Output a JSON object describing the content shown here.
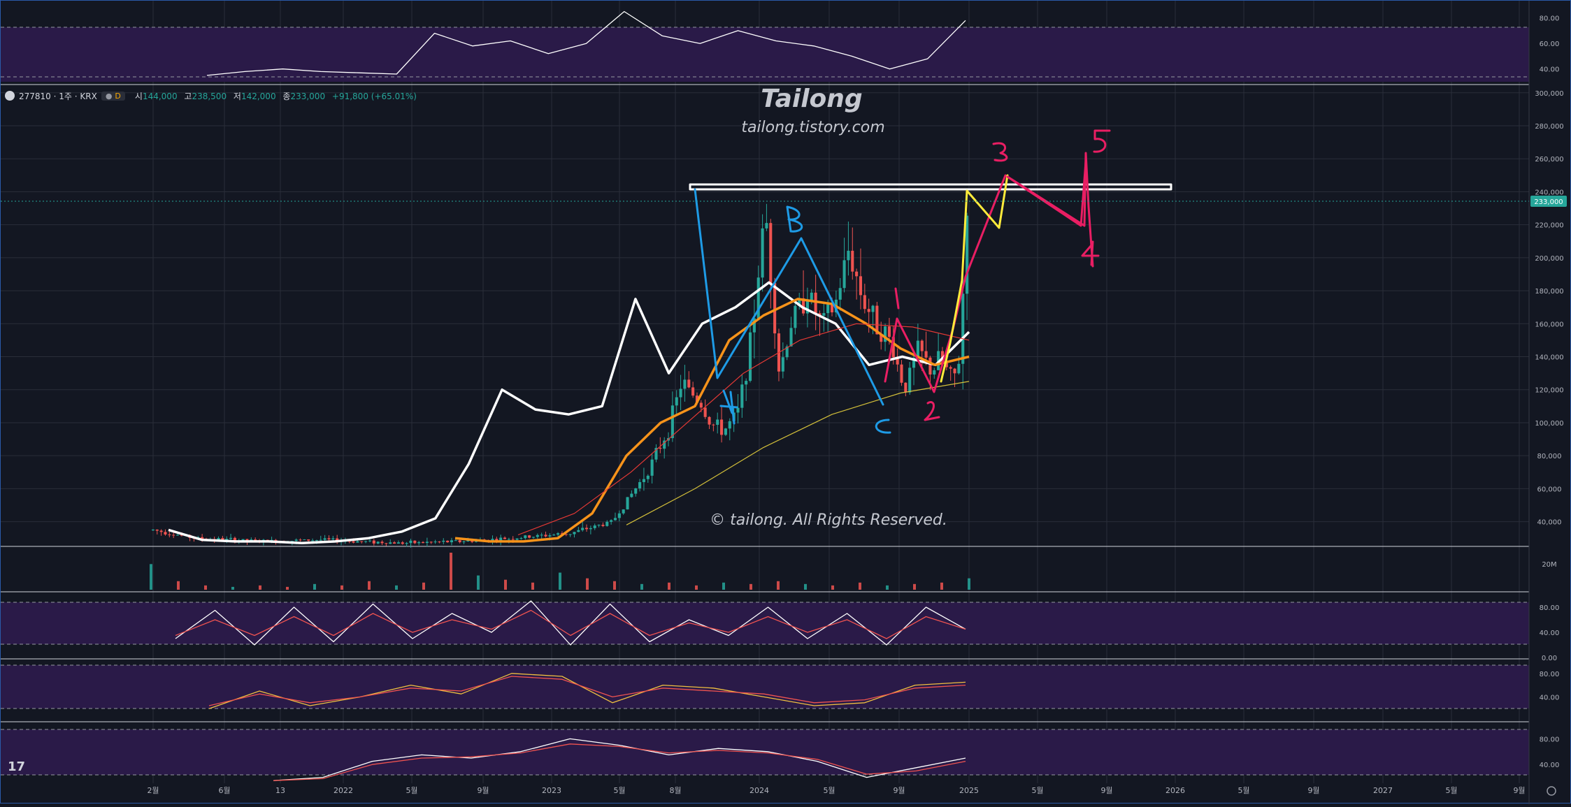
{
  "symbol": {
    "code": "277810 · 1주 · KRX",
    "timeframe_badge": "D",
    "open_label": "시",
    "open": "144,000",
    "high_label": "고",
    "high": "238,500",
    "low_label": "저",
    "low": "142,000",
    "close_label": "종",
    "close": "233,000",
    "change": "+91,800 (+65.01%)"
  },
  "watermark": {
    "title": "Tailong",
    "url": "tailong.tistory.com",
    "copyright": "© tailong. All Rights Reserved."
  },
  "price_badge": "233,000",
  "volume_label": "20M",
  "tv_logo": "17",
  "colors": {
    "background": "#131722",
    "grid": "#2a2e39",
    "up": "#26a69a",
    "down": "#ef5350",
    "ma_short": "#ffffff",
    "ma_mid": "#f7931a",
    "ma_long": "#e53935",
    "ma_longest": "#d4c03a",
    "pane_fill": "#2a1a48",
    "wave_blue": "#1e9be6",
    "wave_pink": "#e91e63",
    "wave_yellow": "#ffeb3b",
    "resistance": "#ffffff"
  },
  "chart_data": [
    {
      "type": "line",
      "pane": "top-indicator",
      "y_ticks": [
        "80.00",
        "60.00",
        "40.00"
      ],
      "ylim": [
        30,
        88
      ],
      "x": [
        0,
        0.05,
        0.1,
        0.15,
        0.2,
        0.25,
        0.3,
        0.35,
        0.4,
        0.45,
        0.5,
        0.55,
        0.6,
        0.65,
        0.7,
        0.75,
        0.8,
        0.85,
        0.9,
        0.95,
        1.0
      ],
      "series": [
        {
          "values": [
            35,
            38,
            40,
            38,
            37,
            36,
            68,
            58,
            62,
            52,
            60,
            85,
            66,
            60,
            70,
            62,
            58,
            50,
            40,
            48,
            78
          ]
        }
      ]
    },
    {
      "type": "candlestick",
      "pane": "price",
      "y_ticks": [
        "300,000",
        "280,000",
        "260,000",
        "240,000",
        "220,000",
        "200,000",
        "180,000",
        "160,000",
        "140,000",
        "120,000",
        "100,000",
        "80,000",
        "60,000",
        "40,000"
      ],
      "ylim": [
        25000,
        305000
      ],
      "x_ticks": [
        "2월",
        "6월",
        "13",
        "2022",
        "5월",
        "9월",
        "2023",
        "5월",
        "8월",
        "2024",
        "5월",
        "9월",
        "2025",
        "5월",
        "9월",
        "2026",
        "5월",
        "9월",
        "2027",
        "5월",
        "9월"
      ],
      "last_price": 233000,
      "resistance_level": 240000,
      "series": [
        {
          "name": "price",
          "x": [
            0.0,
            0.03,
            0.08,
            0.12,
            0.18,
            0.22,
            0.26,
            0.3,
            0.33,
            0.355,
            0.37,
            0.38,
            0.395,
            0.4,
            0.41,
            0.42,
            0.43,
            0.44,
            0.45,
            0.46,
            0.465,
            0.47,
            0.48,
            0.49,
            0.5,
            0.51,
            0.52,
            0.53,
            0.54,
            0.55,
            0.56,
            0.565,
            0.575,
            0.58,
            0.585
          ],
          "values": [
            35000,
            30000,
            28000,
            29000,
            27000,
            28000,
            30000,
            33000,
            40000,
            70000,
            95000,
            125000,
            110000,
            100000,
            95000,
            105000,
            150000,
            230000,
            130000,
            165000,
            170000,
            180000,
            160000,
            170000,
            205000,
            175000,
            160000,
            150000,
            120000,
            145000,
            130000,
            140000,
            125000,
            140000,
            233000
          ]
        },
        {
          "name": "MA-short",
          "values": [
            35000,
            29000,
            28000,
            28000,
            27000,
            28000,
            30000,
            34000,
            42000,
            75000,
            120000,
            108000,
            105000,
            110000,
            175000,
            130000,
            160000,
            170000,
            185000,
            170000,
            160000,
            135000,
            140000,
            135000,
            155000
          ]
        },
        {
          "name": "MA-mid",
          "values": [
            30000,
            28000,
            28000,
            30000,
            45000,
            80000,
            100000,
            110000,
            150000,
            165000,
            175000,
            172000,
            160000,
            145000,
            135000,
            140000
          ]
        },
        {
          "name": "MA-long",
          "values": [
            32000,
            45000,
            70000,
            100000,
            130000,
            150000,
            160000,
            158000,
            150000
          ]
        },
        {
          "name": "MA-longest",
          "values": [
            38000,
            60000,
            85000,
            105000,
            118000,
            125000
          ]
        }
      ]
    },
    {
      "type": "bar",
      "pane": "volume",
      "y_ticks": [
        "20M"
      ],
      "values": [
        18,
        6,
        3,
        2,
        3,
        2,
        4,
        3,
        6,
        3,
        5,
        26,
        10,
        7,
        5,
        12,
        8,
        6,
        4,
        5,
        3,
        5,
        4,
        6,
        4,
        3,
        5,
        3,
        4,
        5,
        8
      ]
    },
    {
      "type": "line",
      "pane": "stochastic-1",
      "y_ticks": [
        "80.00",
        "40.00",
        "0.00"
      ],
      "ylim": [
        0,
        100
      ],
      "series": [
        {
          "values": [
            30,
            75,
            20,
            80,
            25,
            85,
            30,
            70,
            40,
            90,
            20,
            85,
            25,
            60,
            35,
            80,
            30,
            70,
            20,
            80,
            45
          ]
        },
        {
          "values": [
            35,
            60,
            35,
            65,
            35,
            70,
            40,
            60,
            45,
            75,
            35,
            70,
            35,
            55,
            40,
            65,
            40,
            60,
            30,
            65,
            45
          ]
        }
      ]
    },
    {
      "type": "line",
      "pane": "stochastic-2",
      "y_ticks": [
        "80.00",
        "40.00"
      ],
      "ylim": [
        0,
        100
      ],
      "series": [
        {
          "values": [
            20,
            50,
            25,
            40,
            60,
            45,
            80,
            75,
            30,
            60,
            55,
            40,
            25,
            30,
            60,
            65
          ]
        },
        {
          "values": [
            25,
            45,
            30,
            40,
            55,
            50,
            75,
            70,
            40,
            55,
            50,
            45,
            30,
            35,
            55,
            60
          ]
        }
      ]
    },
    {
      "type": "line",
      "pane": "oscillator-3",
      "y_ticks": [
        "80.00",
        "40.00"
      ],
      "ylim": [
        0,
        100
      ],
      "series": [
        {
          "values": [
            15,
            20,
            45,
            55,
            50,
            60,
            80,
            70,
            55,
            65,
            60,
            45,
            20,
            35,
            50
          ]
        },
        {
          "values": [
            15,
            18,
            40,
            50,
            52,
            58,
            72,
            68,
            58,
            62,
            58,
            48,
            25,
            30,
            45
          ]
        }
      ]
    }
  ],
  "annotations": {
    "wave_labels": [
      "A",
      "B",
      "C",
      "1",
      "2",
      "3",
      "4",
      "5"
    ]
  }
}
